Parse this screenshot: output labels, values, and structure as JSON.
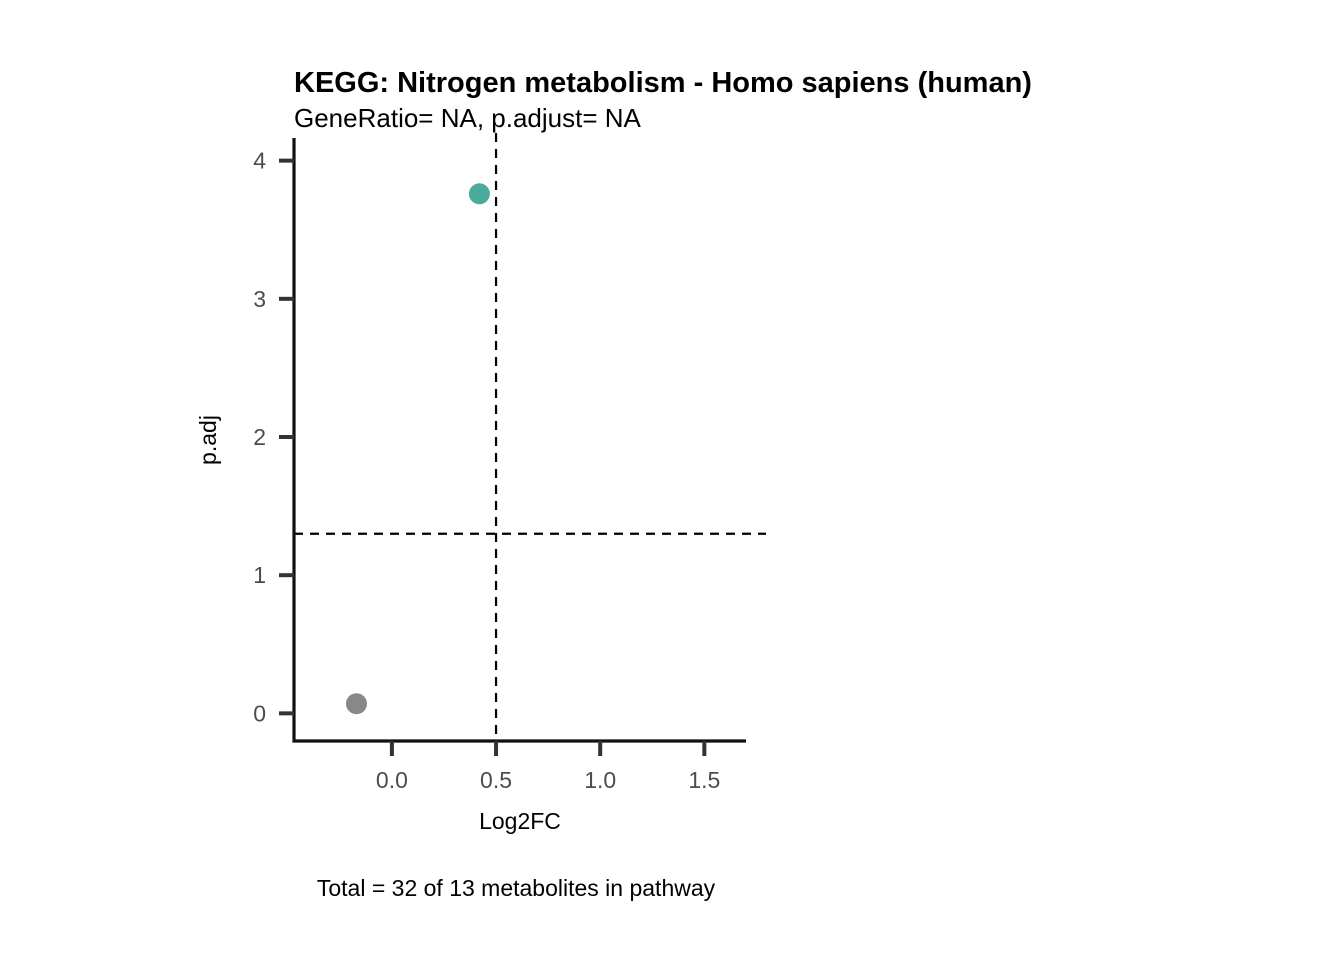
{
  "chart_data": {
    "type": "scatter",
    "title": "KEGG: Nitrogen metabolism - Homo sapiens (human)",
    "subtitle": "GeneRatio= NA, p.adjust= NA",
    "caption": "Total = 32 of 13 metabolites in pathway",
    "xlabel": "Log2FC",
    "ylabel": "p.adj",
    "xlim": [
      -0.47,
      1.7
    ],
    "ylim": [
      -0.2,
      4.2
    ],
    "xticks": [
      0.0,
      0.5,
      1.0,
      1.5
    ],
    "xtick_labels": [
      "0.0",
      "0.5",
      "1.0",
      "1.5"
    ],
    "yticks": [
      0,
      1,
      2,
      3,
      4
    ],
    "ytick_labels": [
      "0",
      "1",
      "2",
      "3",
      "4"
    ],
    "grid": false,
    "legend": "none",
    "reference_lines": {
      "vertical_x": 0.5,
      "horizontal_y": 1.3,
      "style": "dashed"
    },
    "points": [
      {
        "x": 0.42,
        "y": 3.76,
        "color": "#4aaa9b"
      },
      {
        "x": -0.17,
        "y": 0.07,
        "color": "#888888"
      }
    ]
  }
}
